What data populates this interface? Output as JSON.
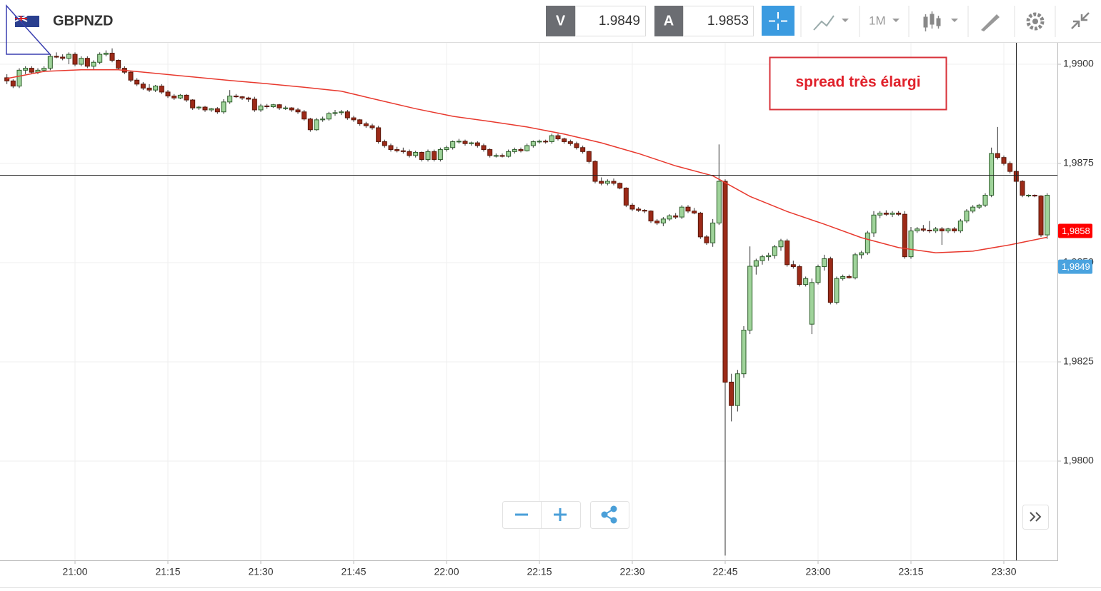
{
  "header": {
    "symbol": "GBPNZD",
    "sell_label": "V",
    "sell_price": 1.9849,
    "buy_label": "A",
    "buy_price": 1.9853,
    "timeframe": "1M"
  },
  "chart_data": {
    "type": "candlestick",
    "annotation": "spread très élargi",
    "up_color": "#9fd39a",
    "down_color": "#9c2a18",
    "ylim": [
      1.9775,
      1.99054
    ],
    "yticks": [
      {
        "value": 1.98,
        "label": "1,9800"
      },
      {
        "value": 1.9825,
        "label": "1,9825"
      },
      {
        "value": 1.985,
        "label": "1,9850"
      },
      {
        "value": 1.9875,
        "label": "1,9875"
      },
      {
        "value": 1.99,
        "label": "1,9900"
      }
    ],
    "grid": true,
    "price_tags": [
      {
        "value": 1.9858,
        "label": "1,9858",
        "color": "#ff0000"
      },
      {
        "value": 1.9849,
        "label": "1,9849",
        "color": "#4aa3df"
      }
    ],
    "categories": [
      null,
      null,
      null,
      null,
      null,
      null,
      null,
      null,
      null,
      null,
      null,
      "21:00",
      null,
      null,
      null,
      null,
      null,
      null,
      null,
      null,
      null,
      null,
      null,
      null,
      null,
      null,
      "21:15",
      null,
      null,
      null,
      null,
      null,
      null,
      null,
      null,
      null,
      null,
      null,
      null,
      null,
      null,
      "21:30",
      null,
      null,
      null,
      null,
      null,
      null,
      null,
      null,
      null,
      null,
      null,
      null,
      null,
      null,
      "21:45",
      null,
      null,
      null,
      null,
      null,
      null,
      null,
      null,
      null,
      null,
      null,
      null,
      null,
      null,
      "22:00",
      null,
      null,
      null,
      null,
      null,
      null,
      null,
      null,
      null,
      null,
      null,
      null,
      null,
      null,
      "22:15",
      null,
      null,
      null,
      null,
      null,
      null,
      null,
      null,
      null,
      null,
      null,
      null,
      null,
      null,
      "22:30",
      null,
      null,
      null,
      null,
      null,
      null,
      null,
      null,
      null,
      null,
      null,
      null,
      null,
      null,
      "22:45",
      null,
      null,
      null,
      null,
      null,
      null,
      null,
      null,
      null,
      null,
      null,
      null,
      null,
      null,
      "23:00",
      null,
      null,
      null,
      null,
      null,
      null,
      null,
      null,
      null,
      null,
      null,
      null,
      null,
      null,
      "23:15",
      null,
      null,
      null,
      null,
      null,
      null,
      null,
      null,
      null,
      null,
      null,
      null,
      null,
      null,
      "23:30",
      null,
      null,
      null,
      null,
      null,
      null,
      null
    ],
    "candles": [
      [
        1.98966,
        1.98975,
        1.9895,
        1.98958
      ],
      [
        1.98958,
        1.98962,
        1.9894,
        1.98945
      ],
      [
        1.98945,
        1.9899,
        1.9894,
        1.98985
      ],
      [
        1.98985,
        1.98995,
        1.98975,
        1.9899
      ],
      [
        1.9899,
        1.98995,
        1.98975,
        1.9898
      ],
      [
        1.9898,
        1.9899,
        1.98975,
        1.98985
      ],
      [
        1.98985,
        1.98995,
        1.9898,
        1.9899
      ],
      [
        1.9899,
        1.99025,
        1.98985,
        1.9902
      ],
      [
        1.9902,
        1.9903,
        1.99015,
        1.99018
      ],
      [
        1.99018,
        1.99025,
        1.9901,
        1.99015
      ],
      [
        1.99015,
        1.9903,
        1.99,
        1.99025
      ],
      [
        1.99025,
        1.9903,
        1.98995,
        1.99
      ],
      [
        1.99,
        1.9902,
        1.98995,
        1.99015
      ],
      [
        1.99015,
        1.9902,
        1.9899,
        1.98995
      ],
      [
        1.98995,
        1.9901,
        1.98985,
        1.99005
      ],
      [
        1.99005,
        1.9903,
        1.99,
        1.99025
      ],
      [
        1.99025,
        1.99035,
        1.9902,
        1.99028
      ],
      [
        1.99028,
        1.9904,
        1.99005,
        1.9901
      ],
      [
        1.9901,
        1.99012,
        1.98985,
        1.9899
      ],
      [
        1.9899,
        1.98995,
        1.98975,
        1.9898
      ],
      [
        1.9898,
        1.98982,
        1.98955,
        1.9896
      ],
      [
        1.9896,
        1.98965,
        1.98945,
        1.9895
      ],
      [
        1.9895,
        1.98955,
        1.98935,
        1.9894
      ],
      [
        1.9894,
        1.9895,
        1.9893,
        1.98935
      ],
      [
        1.98935,
        1.98948,
        1.9893,
        1.98945
      ],
      [
        1.98945,
        1.9895,
        1.98925,
        1.9893
      ],
      [
        1.9893,
        1.98935,
        1.98915,
        1.9892
      ],
      [
        1.9892,
        1.98925,
        1.9891,
        1.98915
      ],
      [
        1.98915,
        1.98925,
        1.98912,
        1.98922
      ],
      [
        1.98922,
        1.98925,
        1.98905,
        1.9891
      ],
      [
        1.9891,
        1.98912,
        1.98885,
        1.9889
      ],
      [
        1.9889,
        1.98895,
        1.98885,
        1.98892
      ],
      [
        1.98892,
        1.98895,
        1.9888,
        1.98885
      ],
      [
        1.98885,
        1.9889,
        1.9888,
        1.98888
      ],
      [
        1.98888,
        1.98892,
        1.98875,
        1.9888
      ],
      [
        1.9888,
        1.98912,
        1.98875,
        1.98905
      ],
      [
        1.98905,
        1.98935,
        1.989,
        1.9892
      ],
      [
        1.9892,
        1.98925,
        1.98915,
        1.98918
      ],
      [
        1.98918,
        1.9892,
        1.9891,
        1.98915
      ],
      [
        1.98915,
        1.98918,
        1.98905,
        1.98912
      ],
      [
        1.98912,
        1.98918,
        1.9888,
        1.98885
      ],
      [
        1.98885,
        1.989,
        1.9888,
        1.98895
      ],
      [
        1.98895,
        1.989,
        1.98888,
        1.98893
      ],
      [
        1.98893,
        1.989,
        1.9889,
        1.98898
      ],
      [
        1.98898,
        1.989,
        1.98885,
        1.9889
      ],
      [
        1.9889,
        1.98895,
        1.98885,
        1.9889
      ],
      [
        1.9889,
        1.98892,
        1.9888,
        1.98885
      ],
      [
        1.98885,
        1.9889,
        1.98875,
        1.9888
      ],
      [
        1.9888,
        1.98885,
        1.98858,
        1.98862
      ],
      [
        1.98862,
        1.98865,
        1.9883,
        1.98835
      ],
      [
        1.98835,
        1.98865,
        1.98832,
        1.9886
      ],
      [
        1.9886,
        1.98868,
        1.98855,
        1.98862
      ],
      [
        1.98862,
        1.9888,
        1.98858,
        1.98876
      ],
      [
        1.98876,
        1.98885,
        1.9887,
        1.98878
      ],
      [
        1.98878,
        1.98885,
        1.98872,
        1.9888
      ],
      [
        1.9888,
        1.98885,
        1.9886,
        1.98865
      ],
      [
        1.98865,
        1.9887,
        1.98855,
        1.9886
      ],
      [
        1.9886,
        1.98862,
        1.98845,
        1.9885
      ],
      [
        1.9885,
        1.98855,
        1.9884,
        1.98845
      ],
      [
        1.98845,
        1.9885,
        1.98835,
        1.9884
      ],
      [
        1.9884,
        1.98845,
        1.988,
        1.98805
      ],
      [
        1.98805,
        1.9881,
        1.9879,
        1.98795
      ],
      [
        1.98795,
        1.988,
        1.9878,
        1.98785
      ],
      [
        1.98785,
        1.98792,
        1.98778,
        1.98782
      ],
      [
        1.98782,
        1.9879,
        1.98775,
        1.9878
      ],
      [
        1.9878,
        1.98785,
        1.98765,
        1.9877
      ],
      [
        1.9877,
        1.98782,
        1.98765,
        1.98778
      ],
      [
        1.98778,
        1.9878,
        1.98755,
        1.9876
      ],
      [
        1.9876,
        1.98785,
        1.98755,
        1.9878
      ],
      [
        1.9878,
        1.98785,
        1.98755,
        1.9876
      ],
      [
        1.9876,
        1.9879,
        1.98755,
        1.98785
      ],
      [
        1.98785,
        1.98795,
        1.9878,
        1.9879
      ],
      [
        1.9879,
        1.98808,
        1.98785,
        1.98805
      ],
      [
        1.98805,
        1.98812,
        1.988,
        1.98806
      ],
      [
        1.98806,
        1.9881,
        1.98795,
        1.988
      ],
      [
        1.988,
        1.98805,
        1.98795,
        1.98802
      ],
      [
        1.98802,
        1.98806,
        1.9879,
        1.98795
      ],
      [
        1.98795,
        1.988,
        1.9878,
        1.98785
      ],
      [
        1.98785,
        1.98788,
        1.98765,
        1.9877
      ],
      [
        1.9877,
        1.98775,
        1.98765,
        1.9877
      ],
      [
        1.9877,
        1.98775,
        1.98765,
        1.98768
      ],
      [
        1.98768,
        1.98785,
        1.98765,
        1.9878
      ],
      [
        1.9878,
        1.9879,
        1.98775,
        1.98785
      ],
      [
        1.98785,
        1.9879,
        1.98778,
        1.98782
      ],
      [
        1.98782,
        1.988,
        1.9878,
        1.98795
      ],
      [
        1.98795,
        1.98808,
        1.9879,
        1.98805
      ],
      [
        1.98805,
        1.9881,
        1.988,
        1.98806
      ],
      [
        1.98806,
        1.9881,
        1.988,
        1.98805
      ],
      [
        1.98805,
        1.98825,
        1.988,
        1.9882
      ],
      [
        1.9882,
        1.98825,
        1.98808,
        1.98812
      ],
      [
        1.98812,
        1.98815,
        1.988,
        1.98805
      ],
      [
        1.98805,
        1.9881,
        1.98795,
        1.988
      ],
      [
        1.988,
        1.98805,
        1.98785,
        1.9879
      ],
      [
        1.9879,
        1.98795,
        1.98775,
        1.9878
      ],
      [
        1.9878,
        1.98782,
        1.9875,
        1.98755
      ],
      [
        1.98755,
        1.98758,
        1.987,
        1.98705
      ],
      [
        1.98705,
        1.98715,
        1.98695,
        1.987
      ],
      [
        1.987,
        1.9871,
        1.98695,
        1.98705
      ],
      [
        1.98705,
        1.98712,
        1.98695,
        1.987
      ],
      [
        1.987,
        1.98702,
        1.98685,
        1.98688
      ],
      [
        1.98688,
        1.9869,
        1.9864,
        1.98645
      ],
      [
        1.98645,
        1.9865,
        1.9863,
        1.98635
      ],
      [
        1.98635,
        1.9864,
        1.98628,
        1.98632
      ],
      [
        1.98632,
        1.98635,
        1.98625,
        1.9863
      ],
      [
        1.9863,
        1.98632,
        1.986,
        1.98605
      ],
      [
        1.98605,
        1.9861,
        1.98595,
        1.986
      ],
      [
        1.986,
        1.98615,
        1.98592,
        1.9861
      ],
      [
        1.9861,
        1.98622,
        1.98605,
        1.98618
      ],
      [
        1.98618,
        1.98625,
        1.9861,
        1.98615
      ],
      [
        1.98615,
        1.98645,
        1.9861,
        1.9864
      ],
      [
        1.9864,
        1.98645,
        1.98625,
        1.9863
      ],
      [
        1.9863,
        1.98638,
        1.98622,
        1.98625
      ],
      [
        1.98625,
        1.98628,
        1.9856,
        1.98565
      ],
      [
        1.98565,
        1.9857,
        1.98545,
        1.9855
      ],
      [
        1.9855,
        1.9861,
        1.9854,
        1.986
      ],
      [
        1.986,
        1.98798,
        1.98595,
        1.98705
      ],
      [
        1.98705,
        1.9871,
        1.97762,
        1.98199
      ],
      [
        1.98199,
        1.9822,
        1.981,
        1.9814
      ],
      [
        1.9814,
        1.9823,
        1.98125,
        1.9822
      ],
      [
        1.9822,
        1.9834,
        1.9821,
        1.9833
      ],
      [
        1.9833,
        1.98541,
        1.9832,
        1.98491
      ],
      [
        1.98491,
        1.9851,
        1.9847,
        1.98505
      ],
      [
        1.98505,
        1.9852,
        1.98495,
        1.98515
      ],
      [
        1.98515,
        1.98525,
        1.98505,
        1.98518
      ],
      [
        1.98518,
        1.98545,
        1.9851,
        1.9854
      ],
      [
        1.9854,
        1.9856,
        1.9853,
        1.98555
      ],
      [
        1.98555,
        1.9856,
        1.9849,
        1.98495
      ],
      [
        1.98495,
        1.98505,
        1.98485,
        1.9849
      ],
      [
        1.9849,
        1.98495,
        1.9844,
        1.98445
      ],
      [
        1.98445,
        1.98465,
        1.9844,
        1.9846
      ],
      [
        1.98345,
        1.9846,
        1.9832,
        1.9845
      ],
      [
        1.9845,
        1.98495,
        1.98445,
        1.9849
      ],
      [
        1.9849,
        1.9852,
        1.9848,
        1.9851
      ],
      [
        1.9851,
        1.98515,
        1.98395,
        1.984
      ],
      [
        1.984,
        1.98465,
        1.98395,
        1.9846
      ],
      [
        1.9846,
        1.9847,
        1.98455,
        1.98465
      ],
      [
        1.98465,
        1.9847,
        1.9846,
        1.98462
      ],
      [
        1.98462,
        1.98525,
        1.98458,
        1.9852
      ],
      [
        1.9852,
        1.9853,
        1.9851,
        1.98525
      ],
      [
        1.98525,
        1.9858,
        1.9852,
        1.98575
      ],
      [
        1.98575,
        1.9863,
        1.98565,
        1.9862
      ],
      [
        1.9862,
        1.9863,
        1.98612,
        1.98625
      ],
      [
        1.98625,
        1.98632,
        1.98618,
        1.98622
      ],
      [
        1.98622,
        1.9863,
        1.98615,
        1.98625
      ],
      [
        1.98625,
        1.9863,
        1.98618,
        1.98622
      ],
      [
        1.98622,
        1.9863,
        1.9851,
        1.98515
      ],
      [
        1.98515,
        1.9859,
        1.9851,
        1.9858
      ],
      [
        1.9858,
        1.9859,
        1.98575,
        1.98585
      ],
      [
        1.98585,
        1.98595,
        1.98578,
        1.98582
      ],
      [
        1.98582,
        1.98605,
        1.98575,
        1.9858
      ],
      [
        1.9858,
        1.9859,
        1.98575,
        1.98585
      ],
      [
        1.98585,
        1.9859,
        1.98545,
        1.9858
      ],
      [
        1.9858,
        1.98588,
        1.98575,
        1.98585
      ],
      [
        1.98585,
        1.9859,
        1.98575,
        1.9858
      ],
      [
        1.9858,
        1.9861,
        1.98575,
        1.98605
      ],
      [
        1.98605,
        1.98635,
        1.986,
        1.9863
      ],
      [
        1.9863,
        1.98645,
        1.98625,
        1.9864
      ],
      [
        1.9864,
        1.98648,
        1.98635,
        1.98645
      ],
      [
        1.98645,
        1.98675,
        1.9864,
        1.9867
      ],
      [
        1.9867,
        1.9879,
        1.98665,
        1.98775
      ],
      [
        1.98775,
        1.98842,
        1.9876,
        1.98765
      ],
      [
        1.98765,
        1.9877,
        1.98745,
        1.9875
      ],
      [
        1.9875,
        1.98755,
        1.98725,
        1.9873
      ],
      [
        1.9873,
        1.98735,
        1.987,
        1.98705
      ],
      [
        1.98705,
        1.98708,
        1.98665,
        1.9867
      ],
      [
        1.9867,
        1.98672,
        1.98665,
        1.9867
      ],
      [
        1.9867,
        1.98672,
        1.98665,
        1.98668
      ],
      [
        1.98668,
        1.9867,
        1.98565,
        1.9857
      ],
      [
        1.9857,
        1.98675,
        1.9856,
        1.9867
      ]
    ],
    "moving_average": {
      "color": "#e8392e",
      "x": [
        0,
        6,
        12,
        18,
        24,
        30,
        36,
        42,
        48,
        54,
        60,
        66,
        72,
        78,
        84,
        90,
        96,
        102,
        108,
        114,
        120,
        126,
        132,
        138,
        144,
        150,
        156,
        162,
        168
      ],
      "values": [
        1.98964,
        1.98982,
        1.98986,
        1.98986,
        1.98977,
        1.98968,
        1.98959,
        1.98951,
        1.98942,
        1.98932,
        1.9891,
        1.98888,
        1.98869,
        1.98856,
        1.98842,
        1.98824,
        1.98802,
        1.98775,
        1.98744,
        1.98719,
        1.98667,
        1.98629,
        1.98597,
        1.98563,
        1.98538,
        1.98525,
        1.98529,
        1.98545,
        1.98564
      ]
    }
  }
}
